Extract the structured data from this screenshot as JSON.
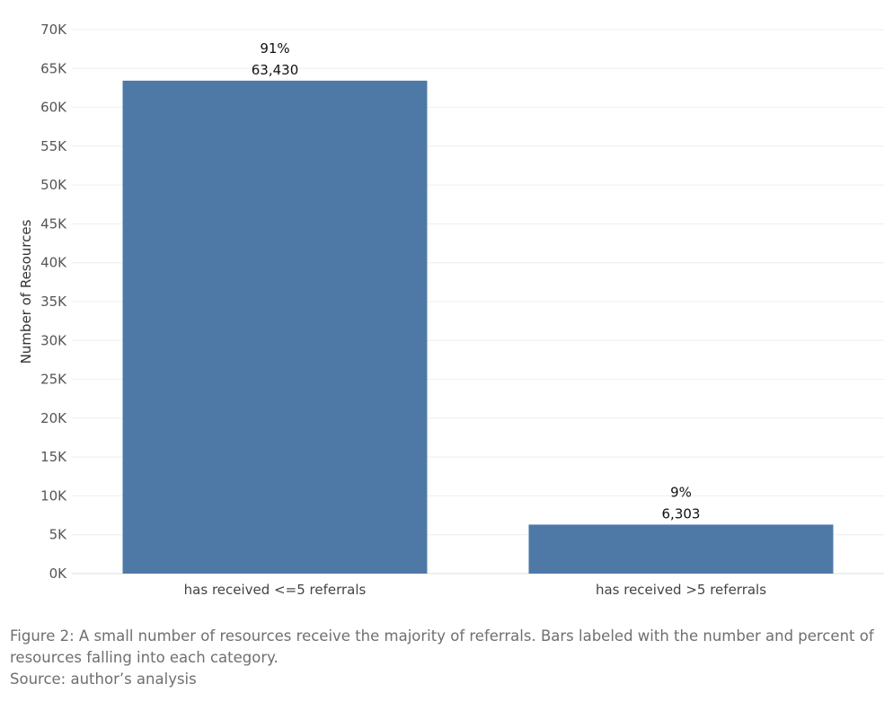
{
  "chart_data": {
    "type": "bar",
    "ylabel": "Number of Resources",
    "xlabel": "",
    "ylim": [
      0,
      70000
    ],
    "y_ticks": [
      0,
      5000,
      10000,
      15000,
      20000,
      25000,
      30000,
      35000,
      40000,
      45000,
      50000,
      55000,
      60000,
      65000,
      70000
    ],
    "y_tick_labels": [
      "0K",
      "5K",
      "10K",
      "15K",
      "20K",
      "25K",
      "30K",
      "35K",
      "40K",
      "45K",
      "50K",
      "55K",
      "60K",
      "65K",
      "70K"
    ],
    "categories": [
      "has received <=5 referrals",
      "has received >5 referrals"
    ],
    "values": [
      63430,
      6303
    ],
    "value_labels": [
      "63,430",
      "6,303"
    ],
    "percent_labels": [
      "91%",
      "9%"
    ],
    "grid": "horizontal",
    "bar_color": "#4e79a7"
  },
  "caption": {
    "line1": "Figure 2: A small number of resources receive the majority of referrals. Bars labeled with the number and percent of resources falling into each category.",
    "source": "Source: author’s analysis"
  }
}
